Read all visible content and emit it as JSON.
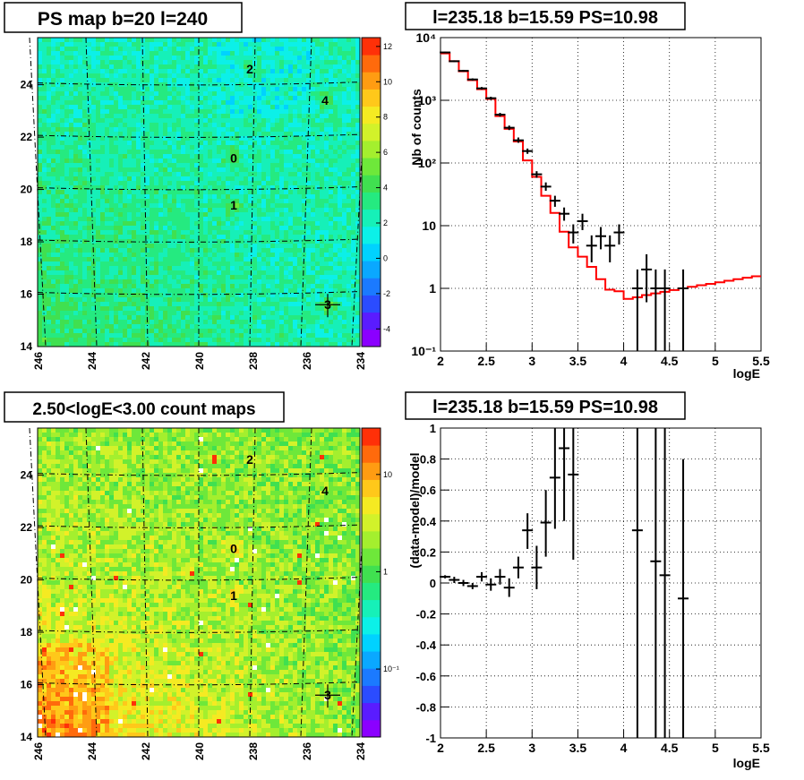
{
  "colors": {
    "frame": "#000000",
    "grid": "#000000",
    "model_line": "#ff0000",
    "data_points": "#000000",
    "palette": [
      "#8b00ff",
      "#5a1cff",
      "#2b4cff",
      "#1b7aff",
      "#0aa8ff",
      "#00d2ff",
      "#0cf0e8",
      "#16f0b8",
      "#25ea80",
      "#40e050",
      "#6ee83a",
      "#a4ef2e",
      "#d2f22a",
      "#f5ea22",
      "#ffc81a",
      "#ff9c12",
      "#ff6a0c",
      "#ff3008"
    ]
  },
  "panels": {
    "ps_map": {
      "title": "PS map b=20 l=240",
      "x_ticks": [
        "246",
        "244",
        "242",
        "240",
        "238",
        "236",
        "234"
      ],
      "y_ticks": [
        "14",
        "16",
        "18",
        "20",
        "22",
        "24"
      ],
      "colorbar_ticks": [
        "12",
        "10",
        "8",
        "6",
        "4",
        "2",
        "0",
        "-2",
        "-4"
      ],
      "sources": [
        {
          "label": "2",
          "l": 238.1,
          "b": 24.6
        },
        {
          "label": "4",
          "l": 235.3,
          "b": 23.4
        },
        {
          "label": "0",
          "l": 238.7,
          "b": 21.2
        },
        {
          "label": "1",
          "l": 238.7,
          "b": 19.4
        },
        {
          "label": "3",
          "l": 235.2,
          "b": 15.6
        }
      ]
    },
    "count_map": {
      "title": "2.50<logE<3.00 count maps",
      "x_ticks": [
        "246",
        "244",
        "242",
        "240",
        "238",
        "236",
        "234"
      ],
      "y_ticks": [
        "14",
        "16",
        "18",
        "20",
        "22",
        "24"
      ],
      "colorbar_ticks": [
        "10",
        "1",
        "10⁻¹"
      ],
      "sources": [
        {
          "label": "2",
          "l": 238.1,
          "b": 24.6
        },
        {
          "label": "4",
          "l": 235.3,
          "b": 23.4
        },
        {
          "label": "0",
          "l": 238.7,
          "b": 21.2
        },
        {
          "label": "1",
          "l": 238.7,
          "b": 19.4
        },
        {
          "label": "3",
          "l": 235.2,
          "b": 15.6
        }
      ]
    },
    "spectrum": {
      "title": "l=235.18 b=15.59 PS=10.98",
      "xlabel": "logE",
      "ylabel": "Nb of counts"
    },
    "residuals": {
      "title": "l=235.18 b=15.59 PS=10.98",
      "xlabel": "logE",
      "ylabel": "(data-model)/model"
    }
  },
  "chart_data": [
    {
      "type": "heatmap",
      "title": "PS map b=20 l=240",
      "x_range": [
        246,
        234
      ],
      "y_range": [
        14,
        25.8
      ],
      "z_range": [
        -5,
        12.5
      ]
    },
    {
      "type": "heatmap",
      "title": "2.50<logE<3.00 count maps",
      "x_range": [
        246,
        234
      ],
      "y_range": [
        14,
        25.8
      ],
      "z_scale": "log",
      "z_range": [
        0.02,
        30
      ]
    },
    {
      "type": "line",
      "title": "l=235.18 b=15.59 PS=10.98",
      "xlabel": "logE",
      "ylabel": "Nb of counts",
      "xlim": [
        2,
        5.5
      ],
      "ylim": [
        0.1,
        10000
      ],
      "y_scale": "log",
      "x_ticks": [
        "2",
        "2.5",
        "3",
        "3.5",
        "4",
        "4.5",
        "5",
        "5.5"
      ],
      "y_ticks": [
        "10⁻¹",
        "1",
        "10",
        "10²",
        "10³",
        "10⁴"
      ],
      "grid": true,
      "model_step": [
        {
          "x0": 2.0,
          "y": 5600
        },
        {
          "x0": 2.1,
          "y": 4200
        },
        {
          "x0": 2.2,
          "y": 2900
        },
        {
          "x0": 2.3,
          "y": 2100
        },
        {
          "x0": 2.4,
          "y": 1500
        },
        {
          "x0": 2.5,
          "y": 1050
        },
        {
          "x0": 2.6,
          "y": 560
        },
        {
          "x0": 2.7,
          "y": 350
        },
        {
          "x0": 2.8,
          "y": 220
        },
        {
          "x0": 2.9,
          "y": 110
        },
        {
          "x0": 3.0,
          "y": 60
        },
        {
          "x0": 3.1,
          "y": 30
        },
        {
          "x0": 3.2,
          "y": 16
        },
        {
          "x0": 3.3,
          "y": 8
        },
        {
          "x0": 3.4,
          "y": 4.5
        },
        {
          "x0": 3.5,
          "y": 3.2
        },
        {
          "x0": 3.6,
          "y": 2.2
        },
        {
          "x0": 3.7,
          "y": 1.4
        },
        {
          "x0": 3.8,
          "y": 0.95
        },
        {
          "x0": 3.9,
          "y": 0.9
        },
        {
          "x0": 4.0,
          "y": 0.68
        },
        {
          "x0": 4.1,
          "y": 0.72
        },
        {
          "x0": 4.2,
          "y": 0.78
        },
        {
          "x0": 4.3,
          "y": 0.83
        },
        {
          "x0": 4.4,
          "y": 0.88
        },
        {
          "x0": 4.5,
          "y": 0.94
        },
        {
          "x0": 4.6,
          "y": 1.0
        },
        {
          "x0": 4.7,
          "y": 1.06
        },
        {
          "x0": 4.8,
          "y": 1.12
        },
        {
          "x0": 4.9,
          "y": 1.18
        },
        {
          "x0": 5.0,
          "y": 1.25
        },
        {
          "x0": 5.1,
          "y": 1.32
        },
        {
          "x0": 5.2,
          "y": 1.4
        },
        {
          "x0": 5.3,
          "y": 1.48
        },
        {
          "x0": 5.4,
          "y": 1.56
        }
      ],
      "data_points": [
        {
          "x": 2.05,
          "y": 5800,
          "lo": 5650,
          "hi": 5950
        },
        {
          "x": 2.15,
          "y": 4200,
          "lo": 4080,
          "hi": 4330
        },
        {
          "x": 2.25,
          "y": 2950,
          "lo": 2850,
          "hi": 3060
        },
        {
          "x": 2.35,
          "y": 2150,
          "lo": 2060,
          "hi": 2240
        },
        {
          "x": 2.45,
          "y": 1550,
          "lo": 1480,
          "hi": 1630
        },
        {
          "x": 2.55,
          "y": 1080,
          "lo": 1020,
          "hi": 1140
        },
        {
          "x": 2.65,
          "y": 590,
          "lo": 550,
          "hi": 630
        },
        {
          "x": 2.75,
          "y": 365,
          "lo": 335,
          "hi": 395
        },
        {
          "x": 2.85,
          "y": 230,
          "lo": 210,
          "hi": 255
        },
        {
          "x": 2.95,
          "y": 155,
          "lo": 140,
          "hi": 170
        },
        {
          "x": 3.05,
          "y": 66,
          "lo": 58,
          "hi": 74
        },
        {
          "x": 3.15,
          "y": 42,
          "lo": 36,
          "hi": 49
        },
        {
          "x": 3.25,
          "y": 25,
          "lo": 20,
          "hi": 30
        },
        {
          "x": 3.35,
          "y": 15.5,
          "lo": 12,
          "hi": 19.5
        },
        {
          "x": 3.45,
          "y": 7.8,
          "lo": 5.2,
          "hi": 10.5
        },
        {
          "x": 3.55,
          "y": 11.8,
          "lo": 8.5,
          "hi": 15.5
        },
        {
          "x": 3.65,
          "y": 4.8,
          "lo": 2.6,
          "hi": 7.0
        },
        {
          "x": 3.75,
          "y": 6.8,
          "lo": 4.2,
          "hi": 9.5
        },
        {
          "x": 3.85,
          "y": 4.8,
          "lo": 2.6,
          "hi": 7.0
        },
        {
          "x": 3.95,
          "y": 7.8,
          "lo": 5.0,
          "hi": 10.5
        },
        {
          "x": 4.15,
          "y": 1.0,
          "lo": 0.1,
          "hi": 2.0
        },
        {
          "x": 4.25,
          "y": 2.0,
          "lo": 0.6,
          "hi": 3.5
        },
        {
          "x": 4.35,
          "y": 1.0,
          "lo": 0.1,
          "hi": 2.0
        },
        {
          "x": 4.45,
          "y": 1.0,
          "lo": 0.1,
          "hi": 2.0
        },
        {
          "x": 4.65,
          "y": 1.0,
          "lo": 0.1,
          "hi": 2.0
        }
      ]
    },
    {
      "type": "scatter",
      "title": "l=235.18 b=15.59 PS=10.98",
      "xlabel": "logE",
      "ylabel": "(data-model)/model",
      "xlim": [
        2,
        5.5
      ],
      "ylim": [
        -1,
        1
      ],
      "x_ticks": [
        "2",
        "2.5",
        "3",
        "3.5",
        "4",
        "4.5",
        "5",
        "5.5"
      ],
      "y_ticks": [
        "-1",
        "-0.8",
        "-0.6",
        "-0.4",
        "-0.2",
        "0",
        "0.2",
        "0.4",
        "0.6",
        "0.8",
        "1"
      ],
      "grid": true,
      "points": [
        {
          "x": 2.05,
          "y": 0.04,
          "lo": 0.03,
          "hi": 0.05
        },
        {
          "x": 2.15,
          "y": 0.02,
          "lo": 0.0,
          "hi": 0.04
        },
        {
          "x": 2.25,
          "y": 0.0,
          "lo": -0.02,
          "hi": 0.02
        },
        {
          "x": 2.35,
          "y": -0.02,
          "lo": -0.04,
          "hi": 0.0
        },
        {
          "x": 2.45,
          "y": 0.04,
          "lo": 0.01,
          "hi": 0.07
        },
        {
          "x": 2.55,
          "y": -0.01,
          "lo": -0.05,
          "hi": 0.03
        },
        {
          "x": 2.65,
          "y": 0.04,
          "lo": -0.01,
          "hi": 0.09
        },
        {
          "x": 2.75,
          "y": -0.03,
          "lo": -0.09,
          "hi": 0.03
        },
        {
          "x": 2.85,
          "y": 0.1,
          "lo": 0.03,
          "hi": 0.17
        },
        {
          "x": 2.95,
          "y": 0.34,
          "lo": 0.22,
          "hi": 0.45
        },
        {
          "x": 3.05,
          "y": 0.1,
          "lo": -0.04,
          "hi": 0.24
        },
        {
          "x": 3.15,
          "y": 0.39,
          "lo": 0.17,
          "hi": 0.6
        },
        {
          "x": 3.25,
          "y": 0.68,
          "lo": 0.35,
          "hi": 1.0
        },
        {
          "x": 3.35,
          "y": 0.87,
          "lo": 0.4,
          "hi": 1.0
        },
        {
          "x": 3.45,
          "y": 0.7,
          "lo": 0.15,
          "hi": 1.0
        },
        {
          "x": 4.15,
          "y": 0.34,
          "lo": -1.0,
          "hi": 1.0
        },
        {
          "x": 4.35,
          "y": 0.14,
          "lo": -1.0,
          "hi": 1.0
        },
        {
          "x": 4.45,
          "y": 0.05,
          "lo": -1.0,
          "hi": 1.0
        },
        {
          "x": 4.65,
          "y": -0.1,
          "lo": -1.0,
          "hi": 0.8
        }
      ]
    }
  ]
}
